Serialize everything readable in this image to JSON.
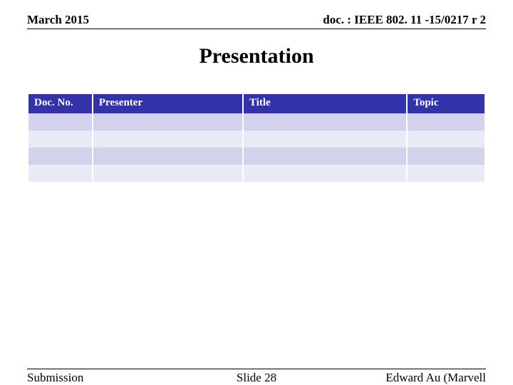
{
  "header": {
    "date": "March 2015",
    "doc_ref": "doc. : IEEE 802. 11 -15/0217 r 2"
  },
  "title": "Presentation",
  "table": {
    "header_bg": "#3232a9",
    "header_text_color": "#ffffff",
    "row_colors": [
      "#d2d2ed",
      "#eaeaf7",
      "#d2d2ed",
      "#eaeaf7"
    ],
    "col_widths": [
      "14%",
      "33%",
      "36%",
      "17%"
    ],
    "columns": [
      "Doc. No.",
      "Presenter",
      "Title",
      "Topic"
    ],
    "rows": [
      [
        "",
        "",
        "",
        ""
      ],
      [
        "",
        "",
        "",
        ""
      ],
      [
        "",
        "",
        "",
        ""
      ],
      [
        "",
        "",
        "",
        ""
      ]
    ]
  },
  "footer": {
    "left": "Submission",
    "center": "Slide 28",
    "right": "Edward Au (Marvell"
  }
}
